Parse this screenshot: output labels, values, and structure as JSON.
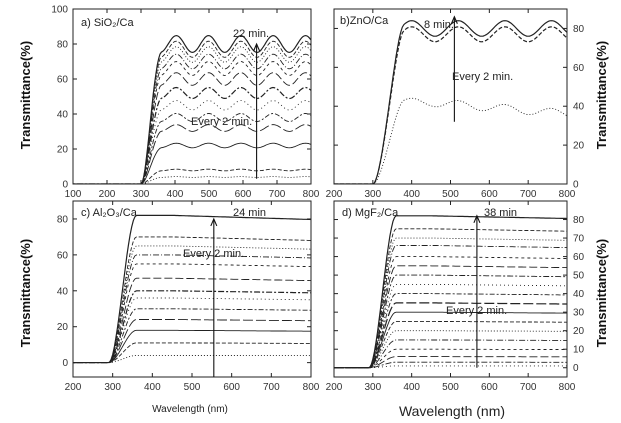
{
  "ylabel": "Transmittance(%)",
  "xlabel": "Wavelength (nm)",
  "chart_data": [
    {
      "type": "line",
      "panel_label": "a) SiO₂/Ca",
      "annotation_time": "22 min.",
      "annotation_step": "Every 2 min.",
      "xlabel": "",
      "ylabel": "Transmittance(%)",
      "xlim": [
        100,
        800
      ],
      "ylim": [
        0,
        100
      ],
      "xticks": [
        100,
        200,
        300,
        400,
        500,
        600,
        700,
        800
      ],
      "yticks": [
        0,
        20,
        40,
        60,
        80,
        100
      ],
      "y_axis_side": "left",
      "edge": 300,
      "rise_end": 360,
      "arrow_x": 640,
      "arrow_y_range": [
        3,
        80
      ],
      "series_plateaus": [
        80,
        77,
        74,
        70,
        66,
        60,
        52,
        45,
        38,
        32,
        22,
        8,
        4
      ]
    },
    {
      "type": "line",
      "panel_label": "b)ZnO/Ca",
      "annotation_time": "8 min.",
      "annotation_step": "Every 2 min.",
      "xlabel": "",
      "ylabel": "Transmittance(%)",
      "xlim": [
        200,
        800
      ],
      "ylim": [
        0,
        90
      ],
      "xticks": [
        200,
        300,
        400,
        500,
        600,
        700,
        800
      ],
      "yticks": [
        0,
        20,
        40,
        60,
        80
      ],
      "y_axis_side": "right",
      "edge": 300,
      "rise_end": 380,
      "arrow_x": 510,
      "arrow_y_range": [
        32,
        86
      ],
      "series_plateaus": [
        80,
        77,
        42
      ]
    },
    {
      "type": "line",
      "panel_label": "c) Al₂O₃/Ca",
      "annotation_time": "24 min",
      "annotation_step": "Every 2 min.",
      "xlabel": "Wavelength (nm)",
      "ylabel": "Transmittance(%)",
      "xlim": [
        200,
        800
      ],
      "ylim": [
        -8,
        90
      ],
      "xticks": [
        200,
        300,
        400,
        500,
        600,
        700,
        800
      ],
      "yticks": [
        0,
        20,
        40,
        60,
        80
      ],
      "y_axis_side": "left",
      "edge": 290,
      "rise_end": 360,
      "arrow_x": 555,
      "arrow_y_range": [
        -8,
        80
      ],
      "series_plateaus": [
        82,
        70,
        65,
        60,
        55,
        47,
        40,
        36,
        30,
        24,
        18,
        11,
        4
      ]
    },
    {
      "type": "line",
      "panel_label": "d) MgF₂/Ca",
      "annotation_time": "38 min",
      "annotation_step": "Every 2 min.",
      "xlabel": "Wavelength (nm)",
      "ylabel": "Transmittance(%)",
      "xlim": [
        200,
        800
      ],
      "ylim": [
        -5,
        90
      ],
      "xticks": [
        200,
        300,
        400,
        500,
        600,
        700,
        800
      ],
      "yticks": [
        0,
        10,
        20,
        30,
        40,
        50,
        60,
        70,
        80
      ],
      "y_axis_side": "right",
      "edge": 290,
      "rise_end": 360,
      "arrow_x": 568,
      "arrow_y_range": [
        0,
        82
      ],
      "series_plateaus": [
        82,
        75,
        70,
        66,
        60,
        55,
        50,
        45,
        40,
        35,
        30,
        25,
        20,
        15,
        10,
        6,
        3,
        1
      ]
    }
  ]
}
